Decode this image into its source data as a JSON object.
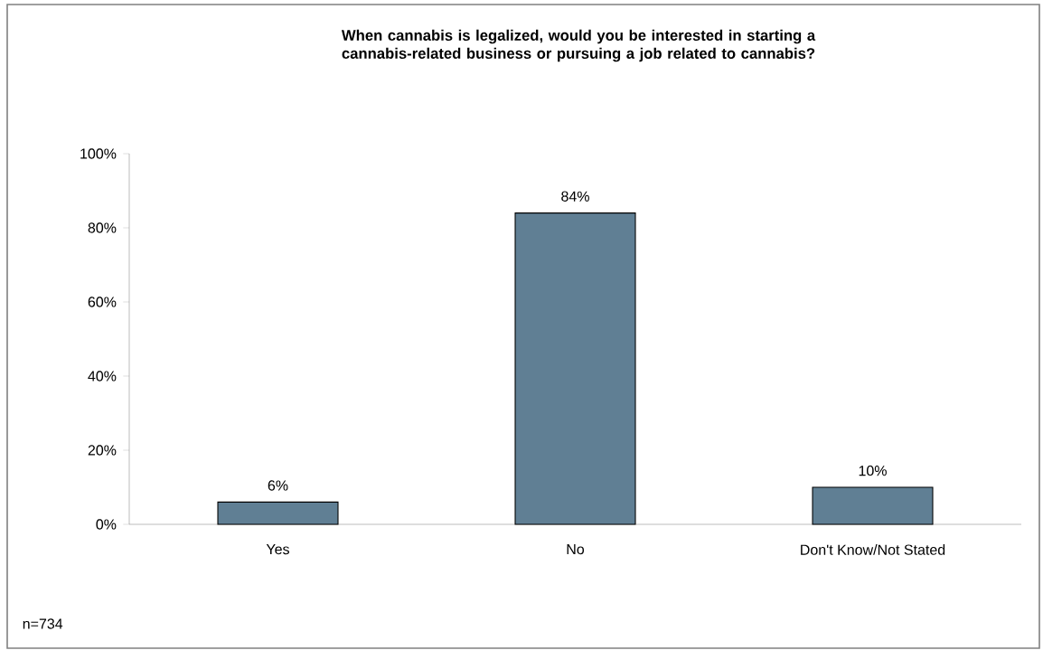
{
  "chart_data": {
    "type": "bar",
    "title": "When cannabis is legalized, would you be interested in starting a cannabis-related business or pursuing a job related to cannabis?",
    "categories": [
      "Yes",
      "No",
      "Don't Know/Not Stated"
    ],
    "values": [
      6,
      84,
      10
    ],
    "value_labels": [
      "6%",
      "84%",
      "10%"
    ],
    "color": "#607f94",
    "ylim": [
      0,
      100
    ],
    "yticks": [
      {
        "value": 0,
        "label": "0%"
      },
      {
        "value": 20,
        "label": "20%"
      },
      {
        "value": 40,
        "label": "40%"
      },
      {
        "value": 60,
        "label": "60%"
      },
      {
        "value": 80,
        "label": "80%"
      },
      {
        "value": 100,
        "label": "100%"
      }
    ],
    "grid": false,
    "annotations": [
      "n=734"
    ]
  }
}
